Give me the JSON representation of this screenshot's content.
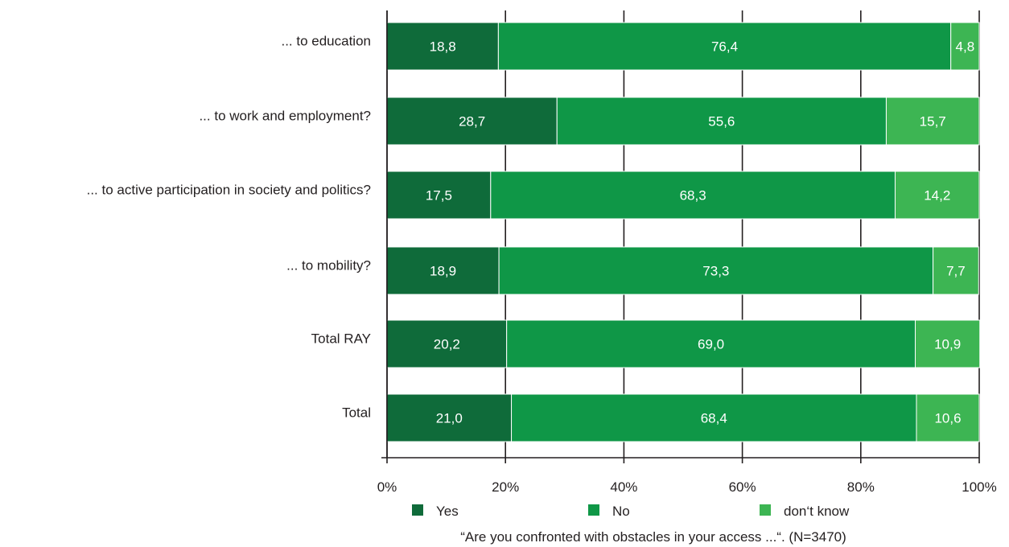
{
  "chart_data": {
    "type": "bar",
    "orientation": "horizontal",
    "stacked": true,
    "categories": [
      "... to education",
      "... to work and employment?",
      "... to active participation in society and politics?",
      "... to mobility?",
      "Total RAY",
      "Total"
    ],
    "series": [
      {
        "name": "Yes",
        "color": "#0f6b3a",
        "values": [
          18.8,
          28.7,
          17.5,
          18.9,
          20.2,
          21.0
        ],
        "labels": [
          "18,8",
          "28,7",
          "17,5",
          "18,9",
          "20,2",
          "21,0"
        ]
      },
      {
        "name": "No",
        "color": "#0f9747",
        "values": [
          76.4,
          55.6,
          68.3,
          73.3,
          69.0,
          68.4
        ],
        "labels": [
          "76,4",
          "55,6",
          "68,3",
          "73,3",
          "69,0",
          "68,4"
        ]
      },
      {
        "name": "don‘t know",
        "color": "#3db553",
        "values": [
          4.8,
          15.7,
          14.2,
          7.7,
          10.9,
          10.6
        ],
        "labels": [
          "4,8",
          "15,7",
          "14,2",
          "7,7",
          "10,9",
          "10,6"
        ]
      }
    ],
    "x_ticks": [
      {
        "value": 0,
        "label": "0%"
      },
      {
        "value": 20,
        "label": "20%"
      },
      {
        "value": 40,
        "label": "40%"
      },
      {
        "value": 60,
        "label": "60%"
      },
      {
        "value": 80,
        "label": "80%"
      },
      {
        "value": 100,
        "label": "100%"
      }
    ],
    "xlim": [
      0,
      100
    ],
    "grid": "vertical",
    "legend": "bottom",
    "caption": "“Are you confronted with obstacles in your access ...“. (N=3470)"
  }
}
